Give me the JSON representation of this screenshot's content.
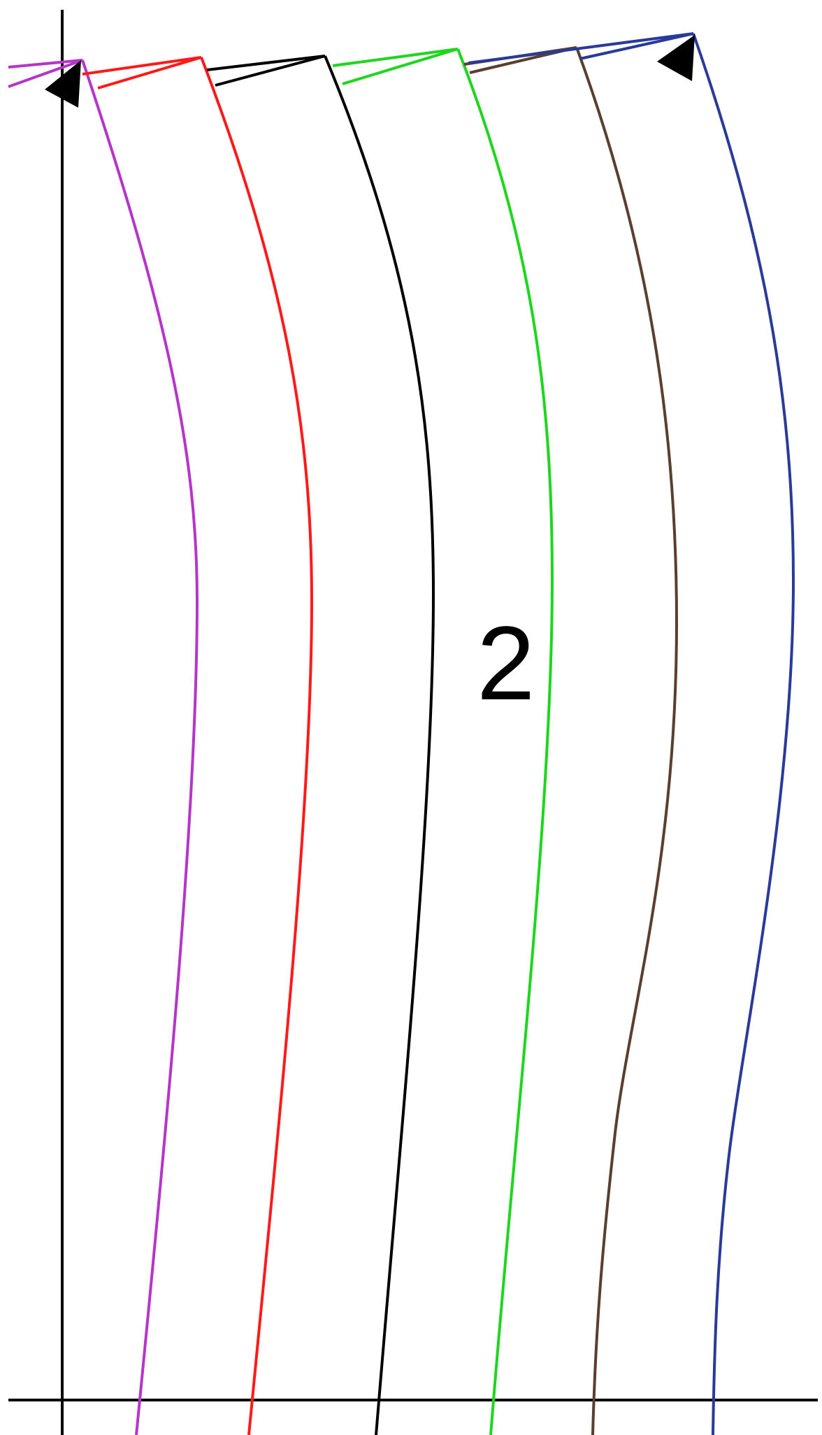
{
  "diagram": {
    "label": "2",
    "colors": {
      "axis": "#000000",
      "arrow": "#000000",
      "text": "#000000"
    },
    "curves": [
      {
        "id": "magenta",
        "color": "#b535c8"
      },
      {
        "id": "red",
        "color": "#ff1a1a"
      },
      {
        "id": "black",
        "color": "#000000"
      },
      {
        "id": "green",
        "color": "#1fd61f"
      },
      {
        "id": "brown",
        "color": "#5a3f2e"
      },
      {
        "id": "navy",
        "color": "#2a3a9a"
      }
    ]
  }
}
